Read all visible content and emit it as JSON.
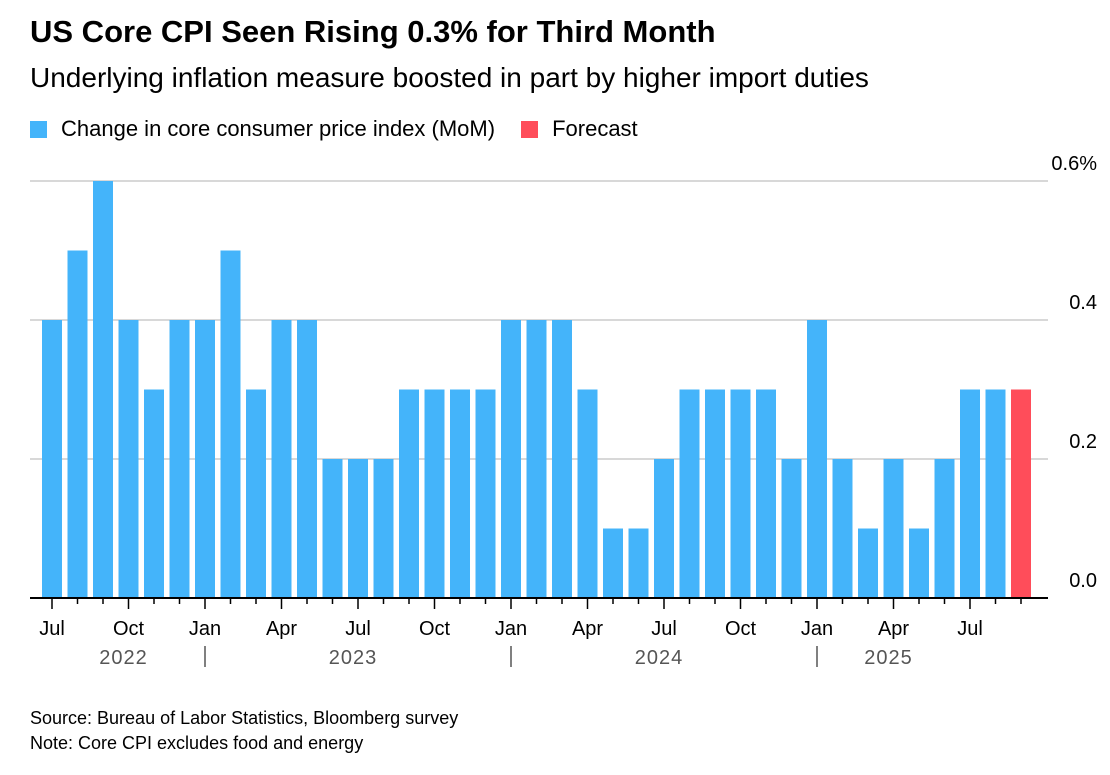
{
  "chart_data": {
    "type": "bar",
    "title": "US Core CPI Seen Rising 0.3% for Third Month",
    "subtitle": "Underlying inflation measure boosted in part by higher import duties",
    "legend": [
      {
        "label": "Change in core consumer price index (MoM)",
        "color": "#44b4fa"
      },
      {
        "label": "Forecast",
        "color": "#ff4d5a"
      }
    ],
    "categories": [
      "Jul 2022",
      "Aug 2022",
      "Sep 2022",
      "Oct 2022",
      "Nov 2022",
      "Dec 2022",
      "Jan 2023",
      "Feb 2023",
      "Mar 2023",
      "Apr 2023",
      "May 2023",
      "Jun 2023",
      "Jul 2023",
      "Aug 2023",
      "Sep 2023",
      "Oct 2023",
      "Nov 2023",
      "Dec 2023",
      "Jan 2024",
      "Feb 2024",
      "Mar 2024",
      "Apr 2024",
      "May 2024",
      "Jun 2024",
      "Jul 2024",
      "Aug 2024",
      "Sep 2024",
      "Oct 2024",
      "Nov 2024",
      "Dec 2024",
      "Jan 2025",
      "Feb 2025",
      "Mar 2025",
      "Apr 2025",
      "May 2025",
      "Jun 2025",
      "Jul 2025",
      "Aug 2025",
      "Sep 2025"
    ],
    "values": [
      0.4,
      0.5,
      0.6,
      0.4,
      0.3,
      0.4,
      0.4,
      0.5,
      0.3,
      0.4,
      0.4,
      0.2,
      0.2,
      0.2,
      0.3,
      0.3,
      0.3,
      0.3,
      0.4,
      0.4,
      0.4,
      0.3,
      0.1,
      0.1,
      0.2,
      0.3,
      0.3,
      0.3,
      0.3,
      0.2,
      0.4,
      0.2,
      0.1,
      0.2,
      0.1,
      0.2,
      0.3,
      0.3,
      0.3
    ],
    "forecast": [
      false,
      false,
      false,
      false,
      false,
      false,
      false,
      false,
      false,
      false,
      false,
      false,
      false,
      false,
      false,
      false,
      false,
      false,
      false,
      false,
      false,
      false,
      false,
      false,
      false,
      false,
      false,
      false,
      false,
      false,
      false,
      false,
      false,
      false,
      false,
      false,
      false,
      false,
      true
    ],
    "ylim": [
      0,
      0.6
    ],
    "yticks": [
      {
        "v": 0,
        "label": "0.0"
      },
      {
        "v": 0.2,
        "label": "0.2"
      },
      {
        "v": 0.4,
        "label": "0.4"
      },
      {
        "v": 0.6,
        "label": "0.6%"
      }
    ],
    "xticks": [
      {
        "i": 0,
        "label": "Jul"
      },
      {
        "i": 3,
        "label": "Oct"
      },
      {
        "i": 6,
        "label": "Jan"
      },
      {
        "i": 9,
        "label": "Apr"
      },
      {
        "i": 12,
        "label": "Jul"
      },
      {
        "i": 15,
        "label": "Oct"
      },
      {
        "i": 18,
        "label": "Jan"
      },
      {
        "i": 21,
        "label": "Apr"
      },
      {
        "i": 24,
        "label": "Jul"
      },
      {
        "i": 27,
        "label": "Oct"
      },
      {
        "i": 30,
        "label": "Jan"
      },
      {
        "i": 33,
        "label": "Apr"
      },
      {
        "i": 36,
        "label": "Jul"
      }
    ],
    "years": [
      {
        "i": 3,
        "label": "2022"
      },
      {
        "i": 12,
        "label": "2023"
      },
      {
        "i": 24,
        "label": "2024"
      },
      {
        "i": 33,
        "label": "2025"
      }
    ],
    "year_separators": [
      6,
      18,
      30
    ],
    "grid": true
  },
  "footer": {
    "source": "Source: Bureau of Labor Statistics, Bloomberg survey",
    "note": "Note: Core CPI excludes food and energy"
  }
}
